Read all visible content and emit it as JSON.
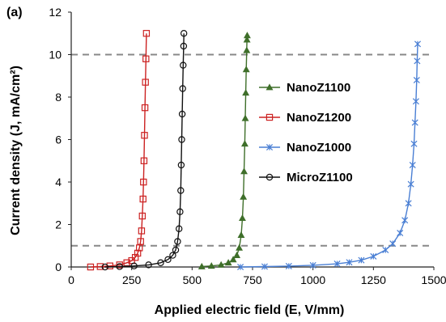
{
  "chart_data": {
    "type": "line",
    "panel_label": "(a)",
    "title": "",
    "xlabel": "Applied electric field (E, V/mm)",
    "ylabel": "Current density (J, mA/cm²)",
    "xlim": [
      0,
      1500
    ],
    "ylim": [
      0,
      12
    ],
    "xticks": [
      0,
      250,
      500,
      750,
      1000,
      1250,
      1500
    ],
    "yticks": [
      0,
      2,
      4,
      6,
      8,
      10,
      12
    ],
    "grid": false,
    "legend_position": "right",
    "reference_lines": [
      {
        "axis": "y",
        "value": 10,
        "style": "dashed",
        "color": "#888888"
      },
      {
        "axis": "y",
        "value": 1,
        "style": "dashed",
        "color": "#888888"
      }
    ],
    "series": [
      {
        "name": "NanoZ1100",
        "color": "#3f6f2a",
        "marker": "triangle",
        "x": [
          540,
          580,
          620,
          650,
          670,
          685,
          695,
          703,
          708,
          712,
          715,
          718,
          720,
          722,
          724,
          726,
          727,
          728
        ],
        "y": [
          0.02,
          0.05,
          0.1,
          0.2,
          0.35,
          0.55,
          0.9,
          1.5,
          2.3,
          3.3,
          4.5,
          5.8,
          7.0,
          8.2,
          9.3,
          10.2,
          10.7,
          10.9
        ]
      },
      {
        "name": "NanoZ1200",
        "color": "#cc2222",
        "marker": "square",
        "x": [
          80,
          120,
          160,
          200,
          230,
          250,
          265,
          275,
          282,
          287,
          291,
          294,
          297,
          299,
          301,
          303,
          305,
          307,
          309,
          311
        ],
        "y": [
          0.0,
          0.02,
          0.05,
          0.1,
          0.2,
          0.3,
          0.45,
          0.65,
          0.9,
          1.2,
          1.7,
          2.4,
          3.2,
          4.0,
          5.0,
          6.2,
          7.5,
          8.7,
          9.8,
          11.0
        ]
      },
      {
        "name": "NanoZ1000",
        "color": "#4a7fd4",
        "marker": "x",
        "x": [
          700,
          800,
          900,
          1000,
          1100,
          1150,
          1200,
          1250,
          1300,
          1330,
          1360,
          1380,
          1395,
          1405,
          1412,
          1418,
          1422,
          1426,
          1429,
          1431,
          1433
        ],
        "y": [
          0.0,
          0.02,
          0.04,
          0.08,
          0.15,
          0.22,
          0.32,
          0.5,
          0.8,
          1.1,
          1.6,
          2.2,
          3.0,
          3.9,
          4.8,
          5.8,
          6.8,
          7.8,
          8.8,
          9.7,
          10.5
        ]
      },
      {
        "name": "MicroZ1100",
        "color": "#111111",
        "marker": "circle",
        "x": [
          140,
          200,
          260,
          320,
          370,
          400,
          420,
          432,
          440,
          446,
          450,
          453,
          455,
          457,
          459,
          461,
          463,
          465,
          466
        ],
        "y": [
          0.0,
          0.02,
          0.05,
          0.1,
          0.2,
          0.35,
          0.55,
          0.8,
          1.2,
          1.8,
          2.6,
          3.6,
          4.8,
          6.0,
          7.2,
          8.4,
          9.5,
          10.4,
          11.0
        ]
      }
    ]
  }
}
